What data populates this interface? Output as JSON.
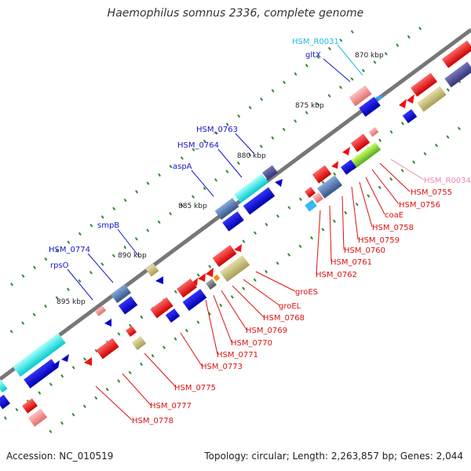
{
  "title": "Haemophilus somnus 2336, complete genome",
  "footer": {
    "accession": "Accession: NC_010519",
    "summary": "Topology: circular; Length: 2,263,857 bp; Genes: 2,044"
  },
  "colors": {
    "backbone": "#777777",
    "tick": "#2e8b2e",
    "forward_label": "#1515cc",
    "reverse_label": "#dd1111",
    "rna_label": "#22bbdd",
    "pseudo_label": "#ee88aa"
  },
  "kbp_ticks": [
    {
      "label": "870 kbp"
    },
    {
      "label": "875 kbp"
    },
    {
      "label": "880 kbp"
    },
    {
      "label": "885 kbp"
    },
    {
      "label": "890 kbp"
    },
    {
      "label": "895 kbp"
    }
  ],
  "gene_labels_upper": [
    {
      "text": "HSM_R0031",
      "type": "rna"
    },
    {
      "text": "gltX",
      "type": "forward"
    },
    {
      "text": "HSM_0763",
      "type": "forward"
    },
    {
      "text": "HSM_0764",
      "type": "forward"
    },
    {
      "text": "aspA",
      "type": "forward"
    },
    {
      "text": "smpB",
      "type": "forward"
    },
    {
      "text": "HSM_0774",
      "type": "forward"
    },
    {
      "text": "rpsO",
      "type": "forward"
    }
  ],
  "gene_labels_lower": [
    {
      "text": "HSM_R0034",
      "type": "pseudo"
    },
    {
      "text": "HSM_0755",
      "type": "reverse"
    },
    {
      "text": "HSM_0756",
      "type": "reverse"
    },
    {
      "text": "coaE",
      "type": "reverse"
    },
    {
      "text": "HSM_0758",
      "type": "reverse"
    },
    {
      "text": "HSM_0759",
      "type": "reverse"
    },
    {
      "text": "HSM_0760",
      "type": "reverse"
    },
    {
      "text": "HSM_0761",
      "type": "reverse"
    },
    {
      "text": "HSM_0762",
      "type": "reverse"
    },
    {
      "text": "groES",
      "type": "reverse"
    },
    {
      "text": "groEL",
      "type": "reverse"
    },
    {
      "text": "HSM_0768",
      "type": "reverse"
    },
    {
      "text": "HSM_0769",
      "type": "reverse"
    },
    {
      "text": "HSM_0770",
      "type": "reverse"
    },
    {
      "text": "HSM_0771",
      "type": "reverse"
    },
    {
      "text": "HSM_0773",
      "type": "reverse"
    },
    {
      "text": "HSM_0775",
      "type": "reverse"
    },
    {
      "text": "HSM_0777",
      "type": "reverse"
    },
    {
      "text": "HSM_0778",
      "type": "reverse"
    }
  ]
}
